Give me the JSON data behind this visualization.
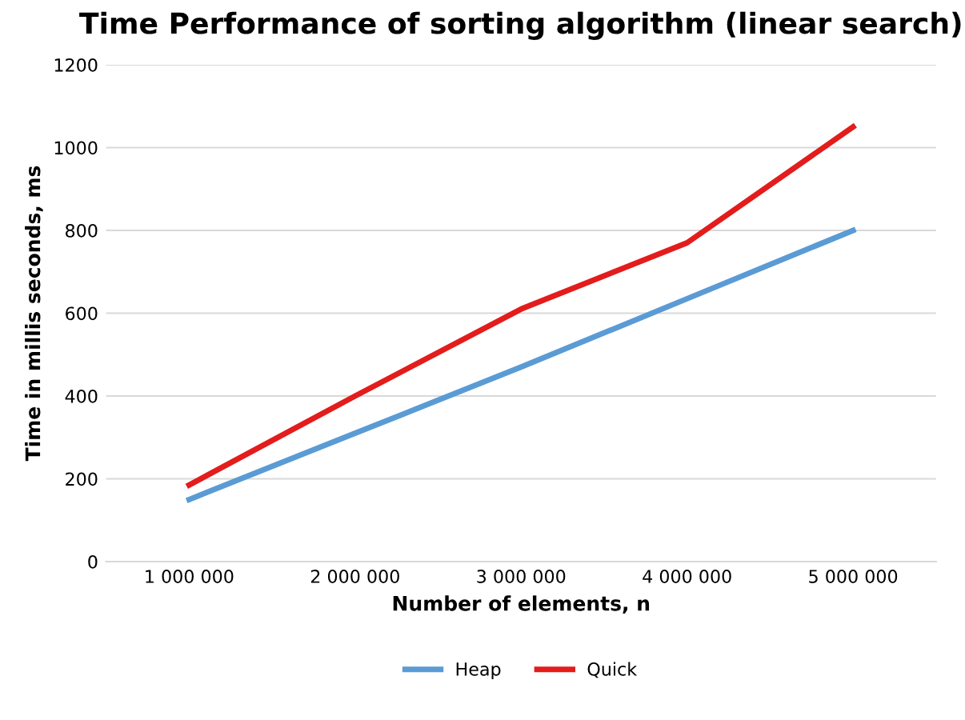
{
  "chart_data": {
    "type": "line",
    "title": "Time Performance of sorting algorithm (linear search)",
    "xlabel": "Number of elements, n",
    "ylabel": "Time in millis seconds, ms",
    "categories": [
      "1 000 000",
      "2 000 000",
      "3 000 000",
      "4 000 000",
      "5 000 000"
    ],
    "series": [
      {
        "name": "Heap",
        "color": "#5b9bd5",
        "values": [
          150,
          310,
          470,
          635,
          800
        ]
      },
      {
        "name": "Quick",
        "color": "#e31c1c",
        "values": [
          185,
          400,
          610,
          770,
          1050
        ]
      }
    ],
    "ylim": [
      0,
      1200
    ],
    "yticks": [
      0,
      200,
      400,
      600,
      800,
      1000,
      1200
    ],
    "grid": "y",
    "legend": "bottom",
    "marker": "none",
    "line_style": "solid"
  }
}
